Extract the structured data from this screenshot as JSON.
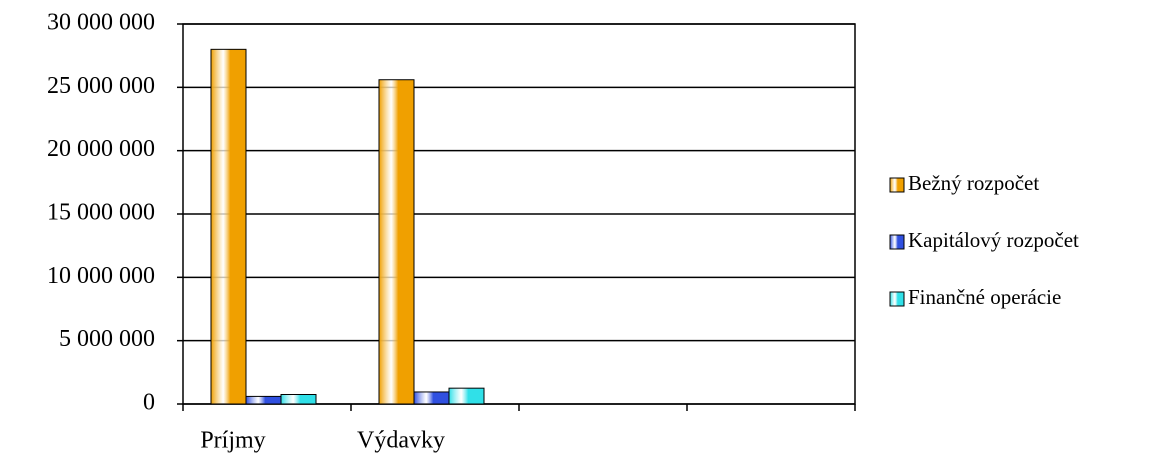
{
  "chart_data": {
    "type": "bar",
    "categories": [
      "Príjmy",
      "Výdavky",
      null,
      null
    ],
    "series": [
      {
        "name": "Bežný rozpočet",
        "color": "#f0a000",
        "values": [
          28000000,
          25600000,
          null,
          null
        ]
      },
      {
        "name": "Kapitálový rozpočet",
        "color": "#3050e0",
        "values": [
          600000,
          950000,
          null,
          null
        ]
      },
      {
        "name": "Finančné operácie",
        "color": "#30e0e8",
        "values": [
          750000,
          1250000,
          null,
          null
        ]
      }
    ],
    "ylim": [
      0,
      30000000
    ],
    "yticks": [
      0,
      {
        "value": 5000000,
        "label": "5 000 000"
      },
      {
        "value": 10000000,
        "label": "10 000 000"
      },
      {
        "value": 15000000,
        "label": "15 000 000"
      },
      {
        "value": 20000000,
        "label": "20 000 000"
      },
      {
        "value": 25000000,
        "label": "25 000 000"
      },
      {
        "value": 30000000,
        "label": "30 000 000"
      }
    ],
    "grid": true,
    "legend": "right"
  }
}
